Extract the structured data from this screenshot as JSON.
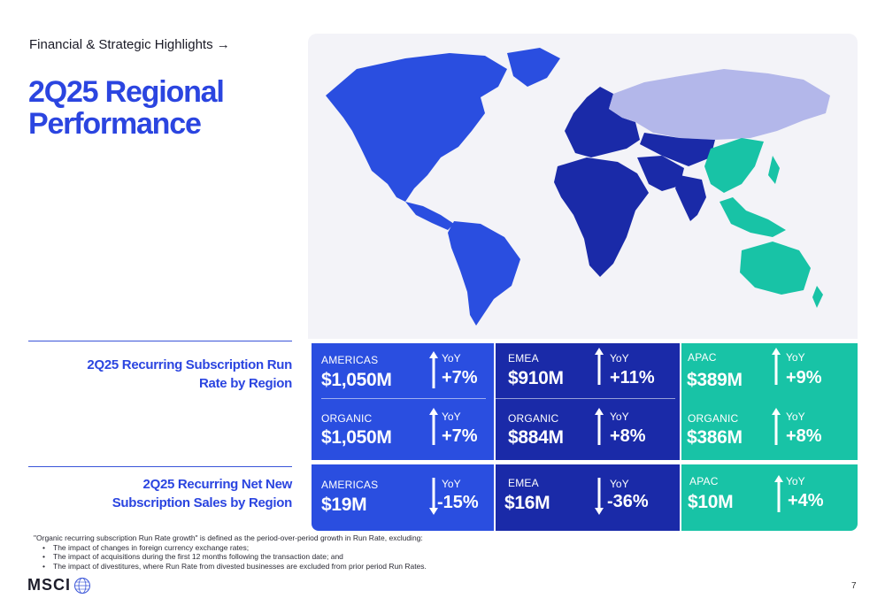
{
  "header": {
    "breadcrumb": "Financial & Strategic Highlights →",
    "title": "2Q25 Regional Performance"
  },
  "map": {
    "colors": {
      "americas": "#2a4ee0",
      "emea": "#1a2aa8",
      "apac": "#18c3a6",
      "other": "#b3b7ea",
      "background": "#f3f3f8"
    }
  },
  "run_rate": {
    "label": "2Q25 Recurring Subscription Run Rate by Region",
    "americas": {
      "region": "AMERICAS",
      "value": "$1,050M",
      "yoy_label": "YoY",
      "yoy": "+7%",
      "organic_label": "ORGANIC",
      "organic_value": "$1,050M",
      "organic_yoy_label": "YoY",
      "organic_yoy": "+7%"
    },
    "emea": {
      "region": "EMEA",
      "value": "$910M",
      "yoy_label": "YoY",
      "yoy": "+11%",
      "organic_label": "ORGANIC",
      "organic_value": "$884M",
      "organic_yoy_label": "YoY",
      "organic_yoy": "+8%"
    },
    "apac": {
      "region": "APAC",
      "value": "$389M",
      "yoy_label": "YoY",
      "yoy": "+9%",
      "organic_label": "ORGANIC",
      "organic_value": "$386M",
      "organic_yoy_label": "YoY",
      "organic_yoy": "+8%"
    }
  },
  "net_new": {
    "label": "2Q25 Recurring Net New Subscription Sales by Region",
    "americas": {
      "region": "AMERICAS",
      "value": "$19M",
      "yoy_label": "YoY",
      "yoy": "-15%",
      "direction": "down"
    },
    "emea": {
      "region": "EMEA",
      "value": "$16M",
      "yoy_label": "YoY",
      "yoy": "-36%",
      "direction": "down"
    },
    "apac": {
      "region": "APAC",
      "value": "$10M",
      "yoy_label": "YoY",
      "yoy": "+4%",
      "direction": "up"
    }
  },
  "footnote": {
    "intro": "\"Organic recurring subscription Run Rate growth\" is defined as the period-over-period growth in Run Rate, excluding:",
    "items": [
      "The impact of changes in foreign currency exchange rates;",
      "The impact of acquisitions during the first 12 months following the transaction date; and",
      "The impact of divestitures, where Run Rate from divested businesses are excluded from prior period Run Rates."
    ]
  },
  "footer": {
    "logo": "MSCI",
    "page_number": "7"
  }
}
